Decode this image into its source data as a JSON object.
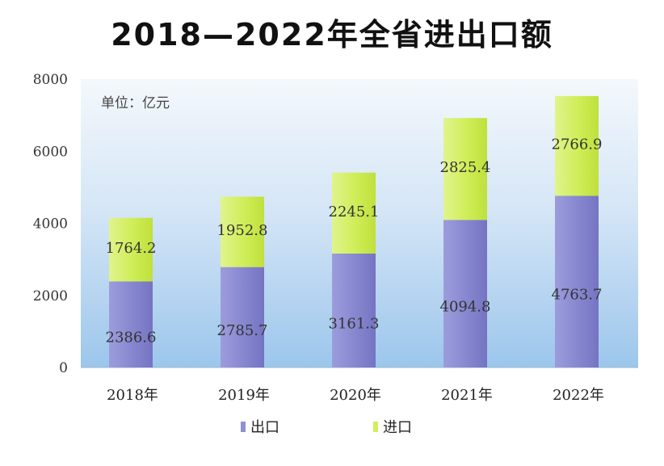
{
  "title": "2018—2022年全省进出口额",
  "chart_data": {
    "type": "bar",
    "stacked": true,
    "title": "2018—2022年全省进出口额",
    "unit_label": "单位：亿元",
    "categories": [
      "2018年",
      "2019年",
      "2020年",
      "2021年",
      "2022年"
    ],
    "series": [
      {
        "name": "出口",
        "values": [
          2386.6,
          2785.7,
          3161.3,
          4094.8,
          4763.7
        ],
        "color": "#8f8fd6",
        "value_labels": [
          "2386.6",
          "2785.7",
          "3161.3",
          "4094.8",
          "4763.7"
        ]
      },
      {
        "name": "进口",
        "values": [
          1764.2,
          1952.8,
          2245.1,
          2825.4,
          2766.9
        ],
        "color": "#d2ef5c",
        "value_labels": [
          "1764.2",
          "1952.8",
          "2245.1",
          "2825.4",
          "2766.9"
        ]
      }
    ],
    "ylim": [
      0,
      8000
    ],
    "yticks": [
      0,
      2000,
      4000,
      6000,
      8000
    ],
    "ytick_labels": [
      "0",
      "2000",
      "4000",
      "6000",
      "8000"
    ],
    "grid": false,
    "legend_position": "bottom"
  }
}
